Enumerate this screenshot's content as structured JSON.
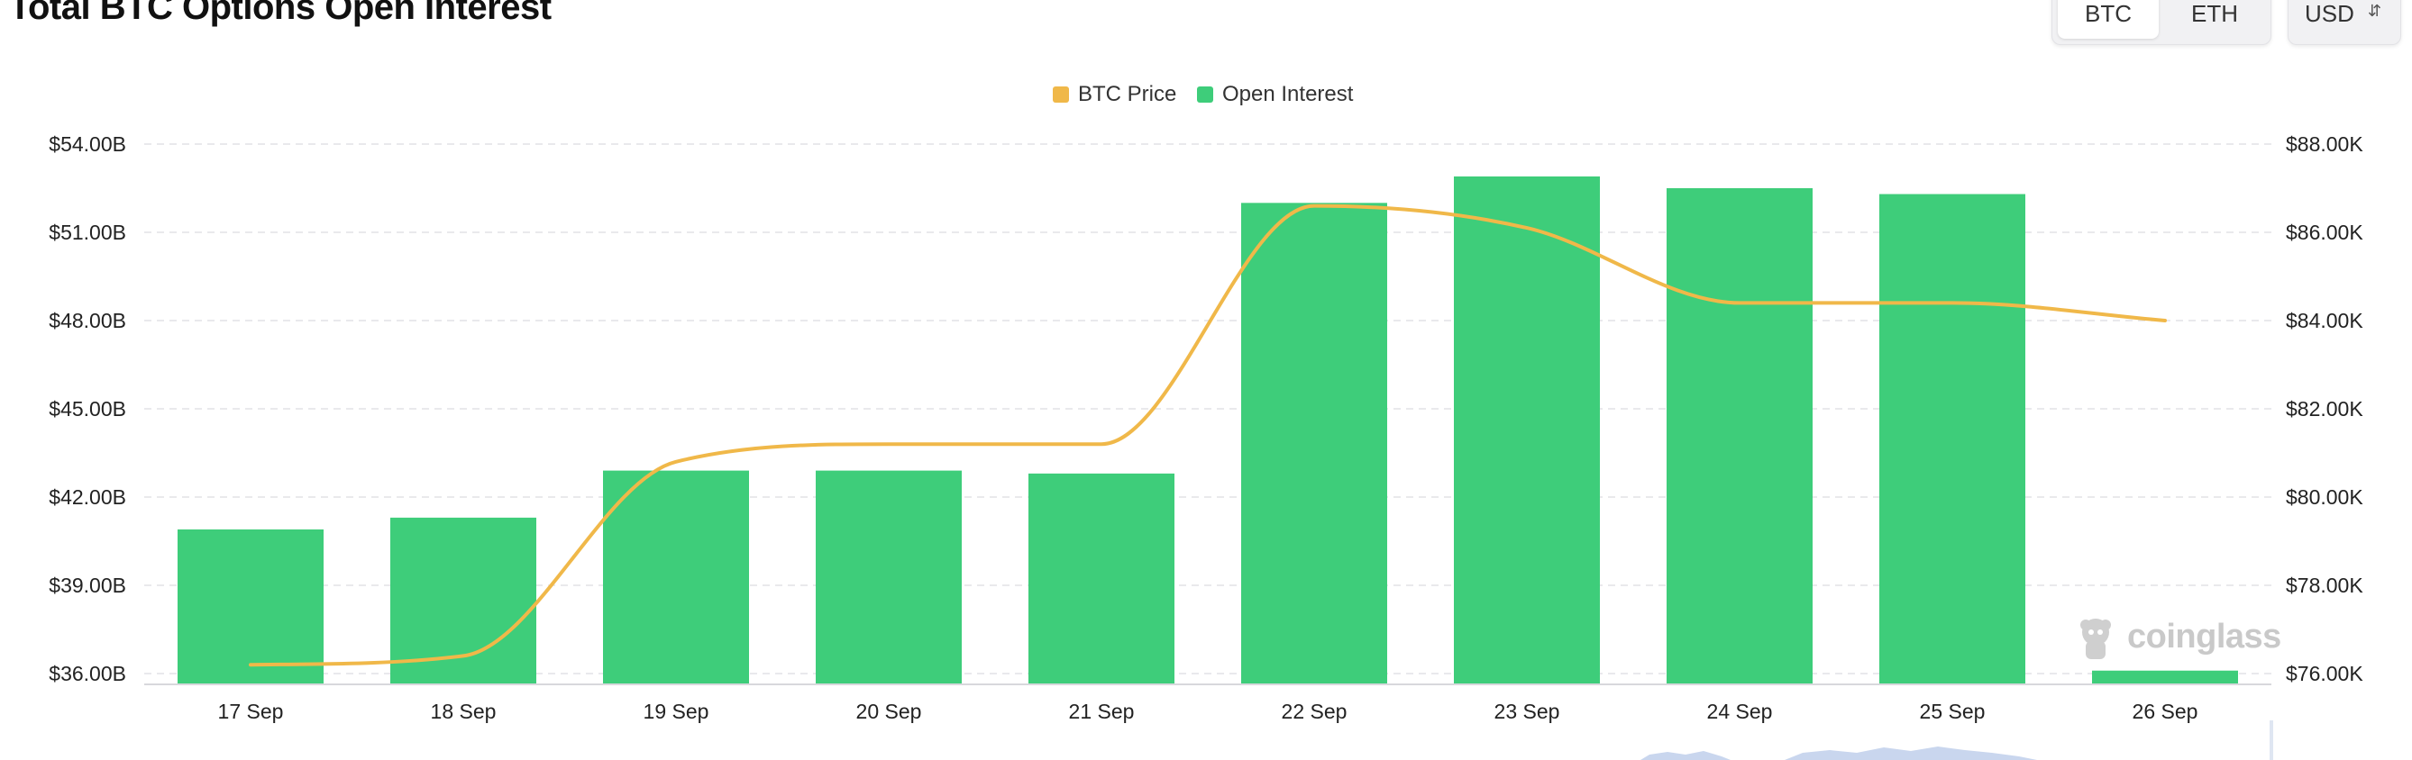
{
  "header": {
    "title": "Total BTC Options Open Interest",
    "asset_toggle": {
      "options": [
        "BTC",
        "ETH"
      ],
      "selected": "BTC"
    },
    "unit_select": {
      "value": "USD"
    }
  },
  "watermark": {
    "text": "coinglass"
  },
  "colors": {
    "bar": "#3ecd7a",
    "line": "#f0b849",
    "grid": "#e9e9ec"
  },
  "chart_data": {
    "type": "bar",
    "legend": {
      "position": "top-center",
      "entries": [
        "BTC Price",
        "Open Interest"
      ]
    },
    "categories": [
      "17 Sep",
      "18 Sep",
      "19 Sep",
      "20 Sep",
      "21 Sep",
      "22 Sep",
      "23 Sep",
      "24 Sep",
      "25 Sep",
      "26 Sep"
    ],
    "series": [
      {
        "name": "Open Interest",
        "type": "bar",
        "axis": "left",
        "values": [
          40.9,
          41.3,
          42.9,
          42.9,
          42.8,
          52.0,
          52.9,
          52.5,
          52.3,
          36.1
        ]
      },
      {
        "name": "BTC Price",
        "type": "line",
        "axis": "right",
        "values": [
          76200,
          76400,
          80800,
          81200,
          81200,
          86600,
          86100,
          84400,
          84400,
          84000
        ]
      }
    ],
    "y_left": {
      "min": 36,
      "max": 54,
      "ticks": [
        54,
        51,
        48,
        45,
        42,
        39,
        36
      ],
      "tick_labels": [
        "$54.00B",
        "$51.00B",
        "$48.00B",
        "$45.00B",
        "$42.00B",
        "$39.00B",
        "$36.00B"
      ]
    },
    "y_right": {
      "min": 76000,
      "max": 88000,
      "ticks": [
        88000,
        86000,
        84000,
        82000,
        80000,
        78000,
        76000
      ],
      "tick_labels": [
        "$88.00K",
        "$86.00K",
        "$84.00K",
        "$82.00K",
        "$80.00K",
        "$78.00K",
        "$76.00K"
      ]
    },
    "grid": true
  }
}
